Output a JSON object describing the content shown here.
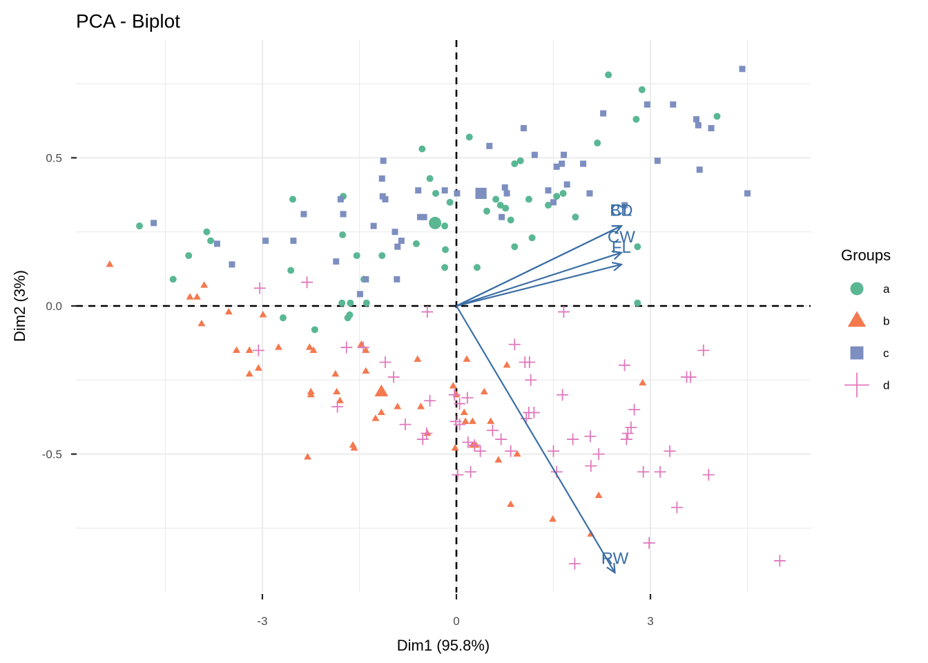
{
  "chart_data": {
    "type": "scatter",
    "title": "PCA - Biplot",
    "xlabel": "Dim1 (95.8%)",
    "ylabel": "Dim2 (3%)",
    "xlim": [
      -5.85,
      5.5
    ],
    "ylim": [
      -0.98,
      0.87
    ],
    "x_ticks": [
      -3,
      0,
      3
    ],
    "y_ticks": [
      -0.5,
      0.0,
      0.5
    ],
    "x_tick_labels": [
      "-3",
      "0",
      "3"
    ],
    "y_tick_labels": [
      "-0.5",
      "0.0",
      "0.5"
    ],
    "x_minor_grid": [
      -4.5,
      -1.5,
      1.5,
      4.5
    ],
    "y_minor_grid": [
      -0.75,
      -0.25,
      0.25,
      0.75
    ],
    "grid": true,
    "reference_lines": {
      "x": 0,
      "y": 0,
      "style": "dashed"
    },
    "legend": {
      "title": "Groups",
      "position": "right",
      "entries": [
        {
          "label": "a",
          "shape": "circle",
          "color": "#5ab794"
        },
        {
          "label": "b",
          "shape": "triangle",
          "color": "#f4794f"
        },
        {
          "label": "c",
          "shape": "square",
          "color": "#7d8ec0"
        },
        {
          "label": "d",
          "shape": "cross",
          "color": "#e078bd"
        }
      ]
    },
    "series": [
      {
        "name": "a",
        "shape": "circle",
        "color": "#5ab794",
        "centroid": [
          -0.33,
          0.28
        ],
        "points": [
          [
            -4.9,
            0.27
          ],
          [
            -4.38,
            0.09
          ],
          [
            -4.14,
            0.17
          ],
          [
            -3.86,
            0.25
          ],
          [
            -3.8,
            0.22
          ],
          [
            -2.53,
            0.36
          ],
          [
            -2.56,
            0.12
          ],
          [
            -2.68,
            -0.04
          ],
          [
            -2.19,
            -0.08
          ],
          [
            -1.75,
            0.37
          ],
          [
            -1.76,
            0.24
          ],
          [
            -1.54,
            0.17
          ],
          [
            -1.15,
            0.17
          ],
          [
            -1.77,
            0.01
          ],
          [
            -1.64,
            0.01
          ],
          [
            -1.39,
            0.01
          ],
          [
            -1.43,
            0.09
          ],
          [
            -1.65,
            -0.03
          ],
          [
            -1.68,
            -0.04
          ],
          [
            -0.62,
            0.21
          ],
          [
            -0.53,
            0.53
          ],
          [
            -0.41,
            0.43
          ],
          [
            -0.32,
            0.38
          ],
          [
            -0.1,
            0.35
          ],
          [
            -0.18,
            0.27
          ],
          [
            -0.18,
            0.13
          ],
          [
            -0.17,
            0.19
          ],
          [
            0.2,
            0.57
          ],
          [
            0.32,
            0.13
          ],
          [
            0.47,
            0.32
          ],
          [
            0.68,
            0.34
          ],
          [
            0.76,
            0.33
          ],
          [
            0.61,
            0.36
          ],
          [
            0.84,
            0.29
          ],
          [
            0.9,
            0.48
          ],
          [
            0.99,
            0.49
          ],
          [
            0.9,
            0.2
          ],
          [
            1.12,
            0.36
          ],
          [
            1.17,
            0.23
          ],
          [
            1.42,
            0.34
          ],
          [
            1.55,
            0.37
          ],
          [
            1.65,
            0.38
          ],
          [
            1.84,
            0.3
          ],
          [
            2.18,
            0.55
          ],
          [
            2.35,
            0.78
          ],
          [
            2.78,
            0.63
          ],
          [
            2.87,
            0.73
          ],
          [
            4.03,
            0.64
          ],
          [
            2.8,
            0.2
          ],
          [
            2.8,
            0.01
          ]
        ]
      },
      {
        "name": "b",
        "shape": "triangle",
        "color": "#f4794f",
        "centroid": [
          -1.16,
          -0.29
        ],
        "points": [
          [
            -5.36,
            0.14
          ],
          [
            -4.12,
            0.03
          ],
          [
            -4.01,
            0.03
          ],
          [
            -3.9,
            0.07
          ],
          [
            -3.94,
            -0.06
          ],
          [
            -3.52,
            -0.02
          ],
          [
            -3.4,
            -0.15
          ],
          [
            -3.2,
            -0.15
          ],
          [
            -3.06,
            -0.21
          ],
          [
            -3.2,
            -0.23
          ],
          [
            -2.99,
            -0.03
          ],
          [
            -2.75,
            -0.14
          ],
          [
            -2.27,
            -0.14
          ],
          [
            -2.21,
            -0.15
          ],
          [
            -2.25,
            -0.29
          ],
          [
            -2.25,
            -0.3
          ],
          [
            -1.87,
            -0.23
          ],
          [
            -1.85,
            -0.29
          ],
          [
            -1.8,
            -0.32
          ],
          [
            -1.47,
            -0.13
          ],
          [
            -1.4,
            -0.15
          ],
          [
            -1.4,
            -0.22
          ],
          [
            -1.25,
            -0.38
          ],
          [
            -1.16,
            -0.36
          ],
          [
            -0.91,
            -0.34
          ],
          [
            -0.6,
            -0.18
          ],
          [
            -0.55,
            -0.34
          ],
          [
            -0.45,
            -0.43
          ],
          [
            -1.6,
            -0.47
          ],
          [
            -1.58,
            -0.48
          ],
          [
            -2.3,
            -0.51
          ],
          [
            -0.05,
            -0.27
          ],
          [
            0.0,
            -0.3
          ],
          [
            0.16,
            -0.18
          ],
          [
            0.12,
            -0.36
          ],
          [
            0.14,
            -0.39
          ],
          [
            0.25,
            -0.39
          ],
          [
            0.43,
            -0.29
          ],
          [
            0.53,
            -0.39
          ],
          [
            0.25,
            -0.47
          ],
          [
            0.3,
            -0.47
          ],
          [
            -0.02,
            -0.48
          ],
          [
            0.65,
            -0.52
          ],
          [
            0.84,
            -0.67
          ],
          [
            0.94,
            -0.5
          ],
          [
            1.49,
            -0.72
          ],
          [
            2.08,
            -0.77
          ],
          [
            2.2,
            -0.64
          ],
          [
            2.88,
            -0.26
          ],
          [
            0.78,
            -0.2
          ]
        ]
      },
      {
        "name": "c",
        "shape": "square",
        "color": "#7d8ec0",
        "centroid": [
          0.38,
          0.38
        ],
        "points": [
          [
            -4.68,
            0.28
          ],
          [
            -3.7,
            0.21
          ],
          [
            -3.47,
            0.14
          ],
          [
            -2.95,
            0.22
          ],
          [
            -2.52,
            0.22
          ],
          [
            -2.36,
            0.31
          ],
          [
            -1.79,
            0.36
          ],
          [
            -1.75,
            0.31
          ],
          [
            -1.86,
            0.15
          ],
          [
            -1.49,
            0.04
          ],
          [
            -1.4,
            0.09
          ],
          [
            -1.28,
            0.27
          ],
          [
            -1.13,
            0.49
          ],
          [
            -1.15,
            0.43
          ],
          [
            -1.14,
            0.37
          ],
          [
            -1.1,
            0.36
          ],
          [
            -0.95,
            0.25
          ],
          [
            -0.92,
            0.09
          ],
          [
            -0.91,
            0.2
          ],
          [
            -0.85,
            0.22
          ],
          [
            -0.59,
            0.39
          ],
          [
            -0.56,
            0.3
          ],
          [
            -0.5,
            0.3
          ],
          [
            -0.18,
            0.39
          ],
          [
            0.01,
            0.38
          ],
          [
            0.51,
            0.54
          ],
          [
            0.75,
            0.4
          ],
          [
            0.78,
            0.38
          ],
          [
            1.04,
            0.6
          ],
          [
            1.21,
            0.51
          ],
          [
            1.42,
            0.39
          ],
          [
            1.5,
            0.35
          ],
          [
            1.55,
            0.47
          ],
          [
            1.63,
            0.48
          ],
          [
            1.66,
            0.51
          ],
          [
            1.71,
            0.41
          ],
          [
            1.96,
            0.48
          ],
          [
            2.06,
            0.38
          ],
          [
            2.27,
            0.65
          ],
          [
            2.6,
            0.34
          ],
          [
            2.95,
            0.68
          ],
          [
            3.11,
            0.49
          ],
          [
            3.35,
            0.68
          ],
          [
            3.71,
            0.63
          ],
          [
            3.74,
            0.61
          ],
          [
            3.76,
            0.46
          ],
          [
            3.94,
            0.6
          ],
          [
            4.42,
            0.8
          ],
          [
            4.5,
            0.38
          ],
          [
            0.7,
            0.3
          ]
        ]
      },
      {
        "name": "d",
        "shape": "cross",
        "color": "#e078bd",
        "centroid": null,
        "points": [
          [
            -3.04,
            0.06
          ],
          [
            -2.31,
            0.08
          ],
          [
            -0.45,
            -0.02
          ],
          [
            1.66,
            -0.02
          ],
          [
            -3.06,
            -0.15
          ],
          [
            -1.7,
            -0.14
          ],
          [
            -1.44,
            -0.14
          ],
          [
            -1.1,
            -0.19
          ],
          [
            -0.97,
            -0.24
          ],
          [
            -1.84,
            -0.34
          ],
          [
            -0.79,
            -0.4
          ],
          [
            -0.52,
            -0.45
          ],
          [
            -0.46,
            -0.43
          ],
          [
            -0.41,
            -0.32
          ],
          [
            -0.03,
            -0.3
          ],
          [
            0.05,
            -0.33
          ],
          [
            0.17,
            -0.31
          ],
          [
            -0.01,
            -0.39
          ],
          [
            0.05,
            -0.4
          ],
          [
            0.18,
            -0.46
          ],
          [
            0.28,
            -0.47
          ],
          [
            0.37,
            -0.49
          ],
          [
            0.22,
            -0.56
          ],
          [
            0.02,
            -0.57
          ],
          [
            0.56,
            -0.42
          ],
          [
            0.69,
            -0.45
          ],
          [
            0.84,
            -0.49
          ],
          [
            0.9,
            -0.13
          ],
          [
            1.06,
            -0.19
          ],
          [
            1.13,
            -0.19
          ],
          [
            1.15,
            -0.25
          ],
          [
            1.12,
            -0.36
          ],
          [
            1.2,
            -0.36
          ],
          [
            1.08,
            -0.38
          ],
          [
            1.64,
            -0.3
          ],
          [
            1.5,
            -0.49
          ],
          [
            1.55,
            -0.56
          ],
          [
            1.8,
            -0.45
          ],
          [
            2.07,
            -0.44
          ],
          [
            2.2,
            -0.5
          ],
          [
            2.08,
            -0.54
          ],
          [
            2.6,
            -0.2
          ],
          [
            2.65,
            -0.43
          ],
          [
            2.63,
            -0.45
          ],
          [
            2.7,
            -0.41
          ],
          [
            2.75,
            -0.35
          ],
          [
            2.89,
            -0.56
          ],
          [
            3.15,
            -0.56
          ],
          [
            3.3,
            -0.49
          ],
          [
            3.41,
            -0.68
          ],
          [
            2.98,
            -0.8
          ],
          [
            3.56,
            -0.24
          ],
          [
            3.62,
            -0.24
          ],
          [
            3.82,
            -0.15
          ],
          [
            3.9,
            -0.57
          ],
          [
            5.0,
            -0.86
          ],
          [
            1.83,
            -0.87
          ]
        ]
      }
    ],
    "variables": [
      {
        "name": "BD",
        "x": 2.55,
        "y": 0.27
      },
      {
        "name": "CL",
        "x": 2.55,
        "y": 0.27
      },
      {
        "name": "CW",
        "x": 2.55,
        "y": 0.18
      },
      {
        "name": "FL",
        "x": 2.55,
        "y": 0.14
      },
      {
        "name": "RW",
        "x": 2.45,
        "y": -0.9
      }
    ],
    "variable_labels": [
      {
        "text": "BD",
        "x": 2.55,
        "y": 0.325
      },
      {
        "text": "CL",
        "x": 2.55,
        "y": 0.325
      },
      {
        "text": "CW",
        "x": 2.55,
        "y": 0.235
      },
      {
        "text": "FL",
        "x": 2.55,
        "y": 0.2
      },
      {
        "text": "RW",
        "x": 2.45,
        "y": -0.85
      }
    ],
    "variable_color": "#3a6ea5"
  }
}
